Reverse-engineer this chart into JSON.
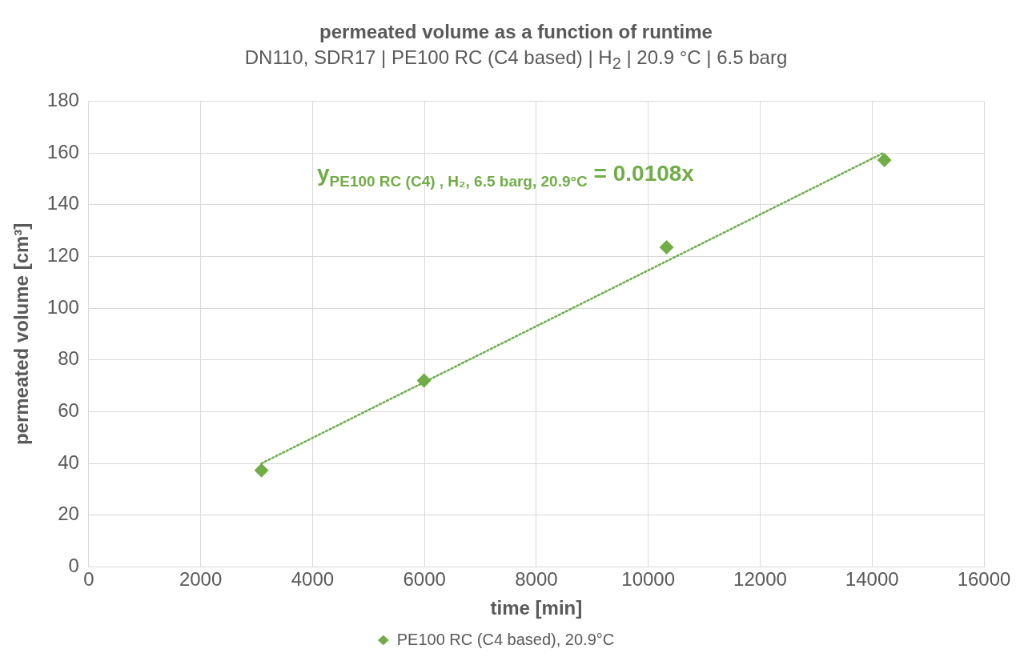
{
  "chart_data": {
    "type": "scatter",
    "title": "permeated volume as a function of runtime",
    "subtitle": "DN110, SDR17 | PE100 RC (C4 based) | H$_{2}$ | 20.9 °C | 6.5 barg",
    "xlabel": "time [min]",
    "ylabel": "permeated volume [cm³]",
    "series": [
      {
        "name": "PE100 RC (C4 based), 20.9°C",
        "color": "#70ad47",
        "x": [
          3087,
          5992,
          10327,
          14220
        ],
        "values": [
          37.3,
          72.0,
          123.5,
          157.2
        ],
        "marker": "diamond"
      },
      {
        "type": "line",
        "color": "#70ad47",
        "x": [
          3087,
          14205
        ],
        "values": [
          40,
          160
        ],
        "line_style": "dotted",
        "marker": "none"
      }
    ],
    "annotations": [
      "y$_{PE100 RC (C4) , H₂, 6.5 barg, 20.9°C}$ = 0.0108x"
    ],
    "xlim": [
      0,
      16000
    ],
    "xticks": [
      0,
      2000,
      4000,
      6000,
      8000,
      10000,
      12000,
      14000,
      16000
    ],
    "ylim": [
      0,
      180
    ],
    "yticks": [
      0,
      20,
      40,
      60,
      80,
      100,
      120,
      140,
      160,
      180
    ],
    "grid": true,
    "legend": "bottom"
  }
}
